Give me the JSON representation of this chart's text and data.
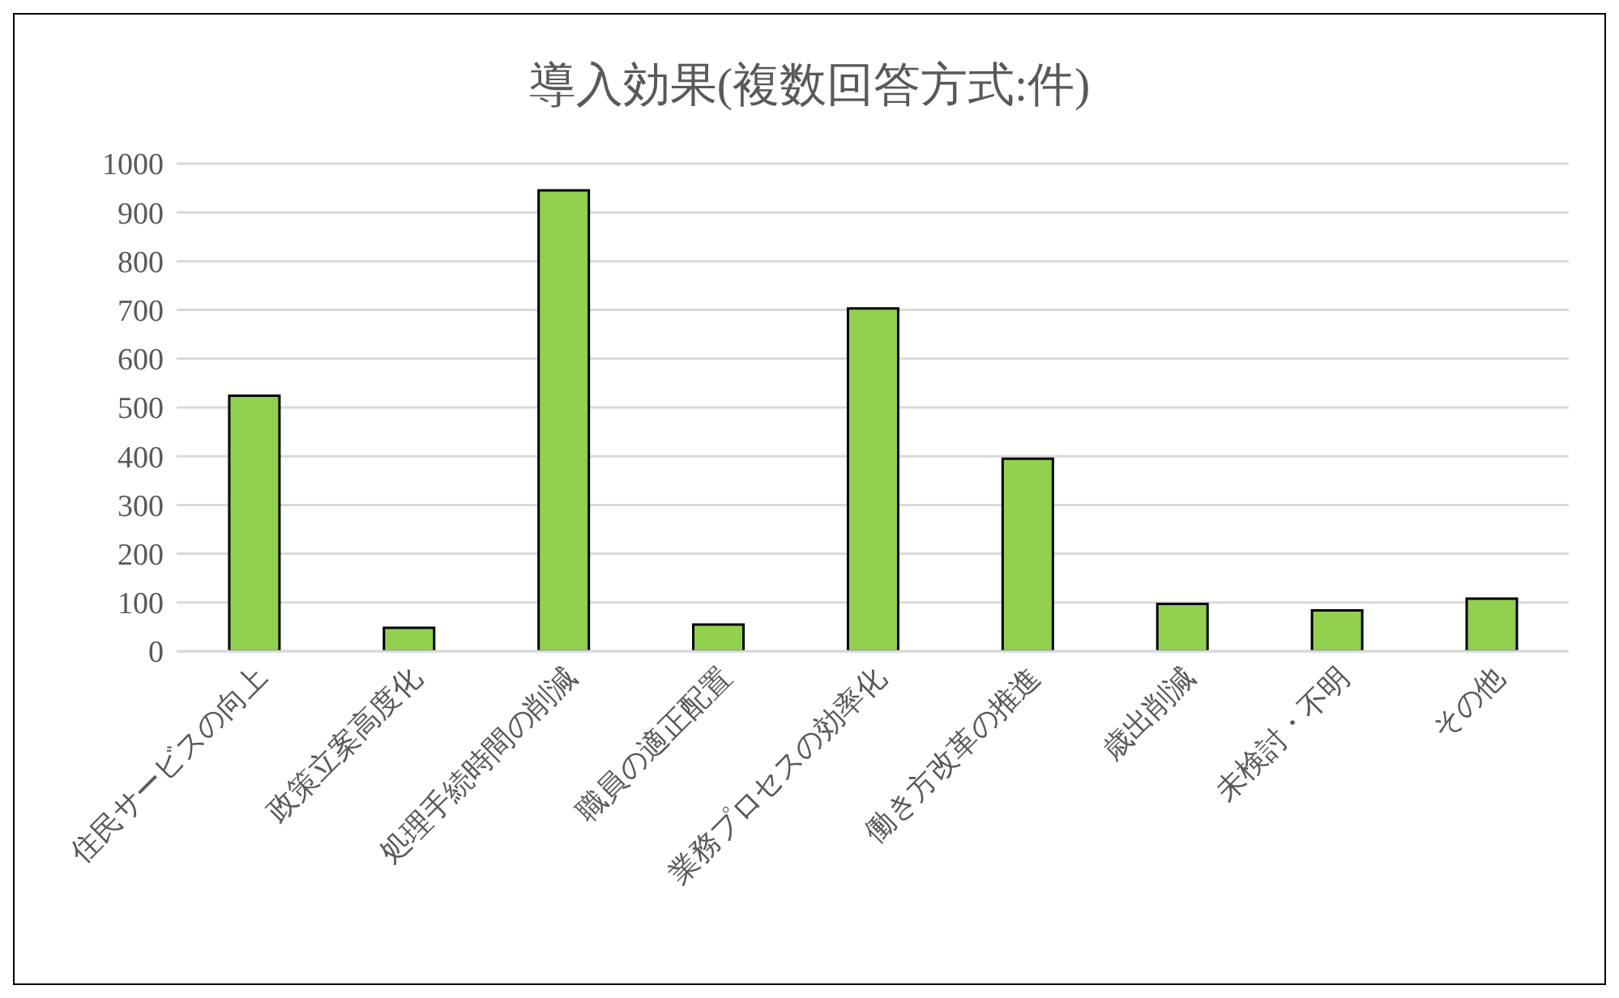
{
  "chart_data": {
    "type": "bar",
    "title": "導入効果(複数回答方式:件)",
    "categories": [
      "住民サービスの向上",
      "政策立案高度化",
      "処理手続時間の削減",
      "職員の適正配置",
      "業務プロセスの効率化",
      "働き方改革の推進",
      "歳出削減",
      "未検討・不明",
      "その他"
    ],
    "values": [
      524,
      48,
      945,
      55,
      703,
      395,
      97,
      84,
      108
    ],
    "color": "#92d050",
    "ylim": [
      0,
      1000
    ],
    "yticks": [
      0,
      100,
      200,
      300,
      400,
      500,
      600,
      700,
      800,
      900,
      1000
    ],
    "grid": "y"
  }
}
